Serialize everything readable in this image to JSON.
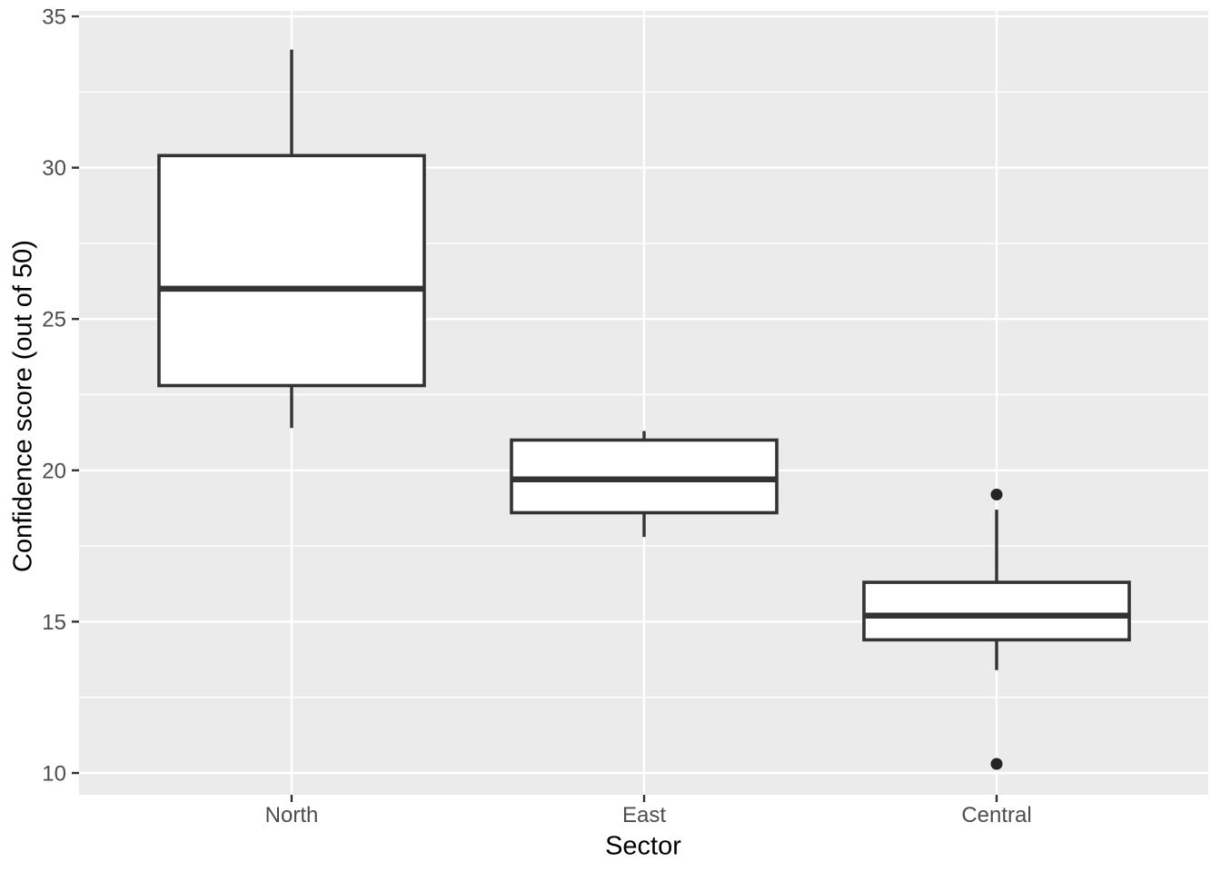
{
  "chart_data": {
    "type": "boxplot",
    "title": "",
    "xlabel": "Sector",
    "ylabel": "Confidence score (out of 50)",
    "categories": [
      "North",
      "East",
      "Central"
    ],
    "y_ticks": [
      35,
      30,
      25,
      20,
      15,
      10
    ],
    "y_minor_ticks": [
      32.5,
      27.5,
      22.5,
      17.5,
      12.5
    ],
    "ylim": [
      9.3,
      35.2
    ],
    "grid": "on",
    "legend": "none",
    "series": [
      {
        "category": "North",
        "whisker_low": 21.4,
        "q1": 22.8,
        "median": 26.0,
        "q3": 30.4,
        "whisker_high": 33.9,
        "outliers": []
      },
      {
        "category": "East",
        "whisker_low": 17.8,
        "q1": 18.6,
        "median": 19.7,
        "q3": 21.0,
        "whisker_high": 21.3,
        "outliers": []
      },
      {
        "category": "Central",
        "whisker_low": 13.4,
        "q1": 14.4,
        "median": 15.2,
        "q3": 16.3,
        "whisker_high": 18.7,
        "outliers": [
          19.2,
          10.3
        ]
      }
    ],
    "style": {
      "panel_background": "#EBEBEB",
      "gridline_color": "#FFFFFF",
      "box_fill": "#FFFFFF",
      "box_line_color": "#333333",
      "outlier_color": "#252525",
      "tick_mark_color": "#333333",
      "tick_label_color": "#4D4D4D",
      "axis_title_color": "#000000"
    }
  }
}
